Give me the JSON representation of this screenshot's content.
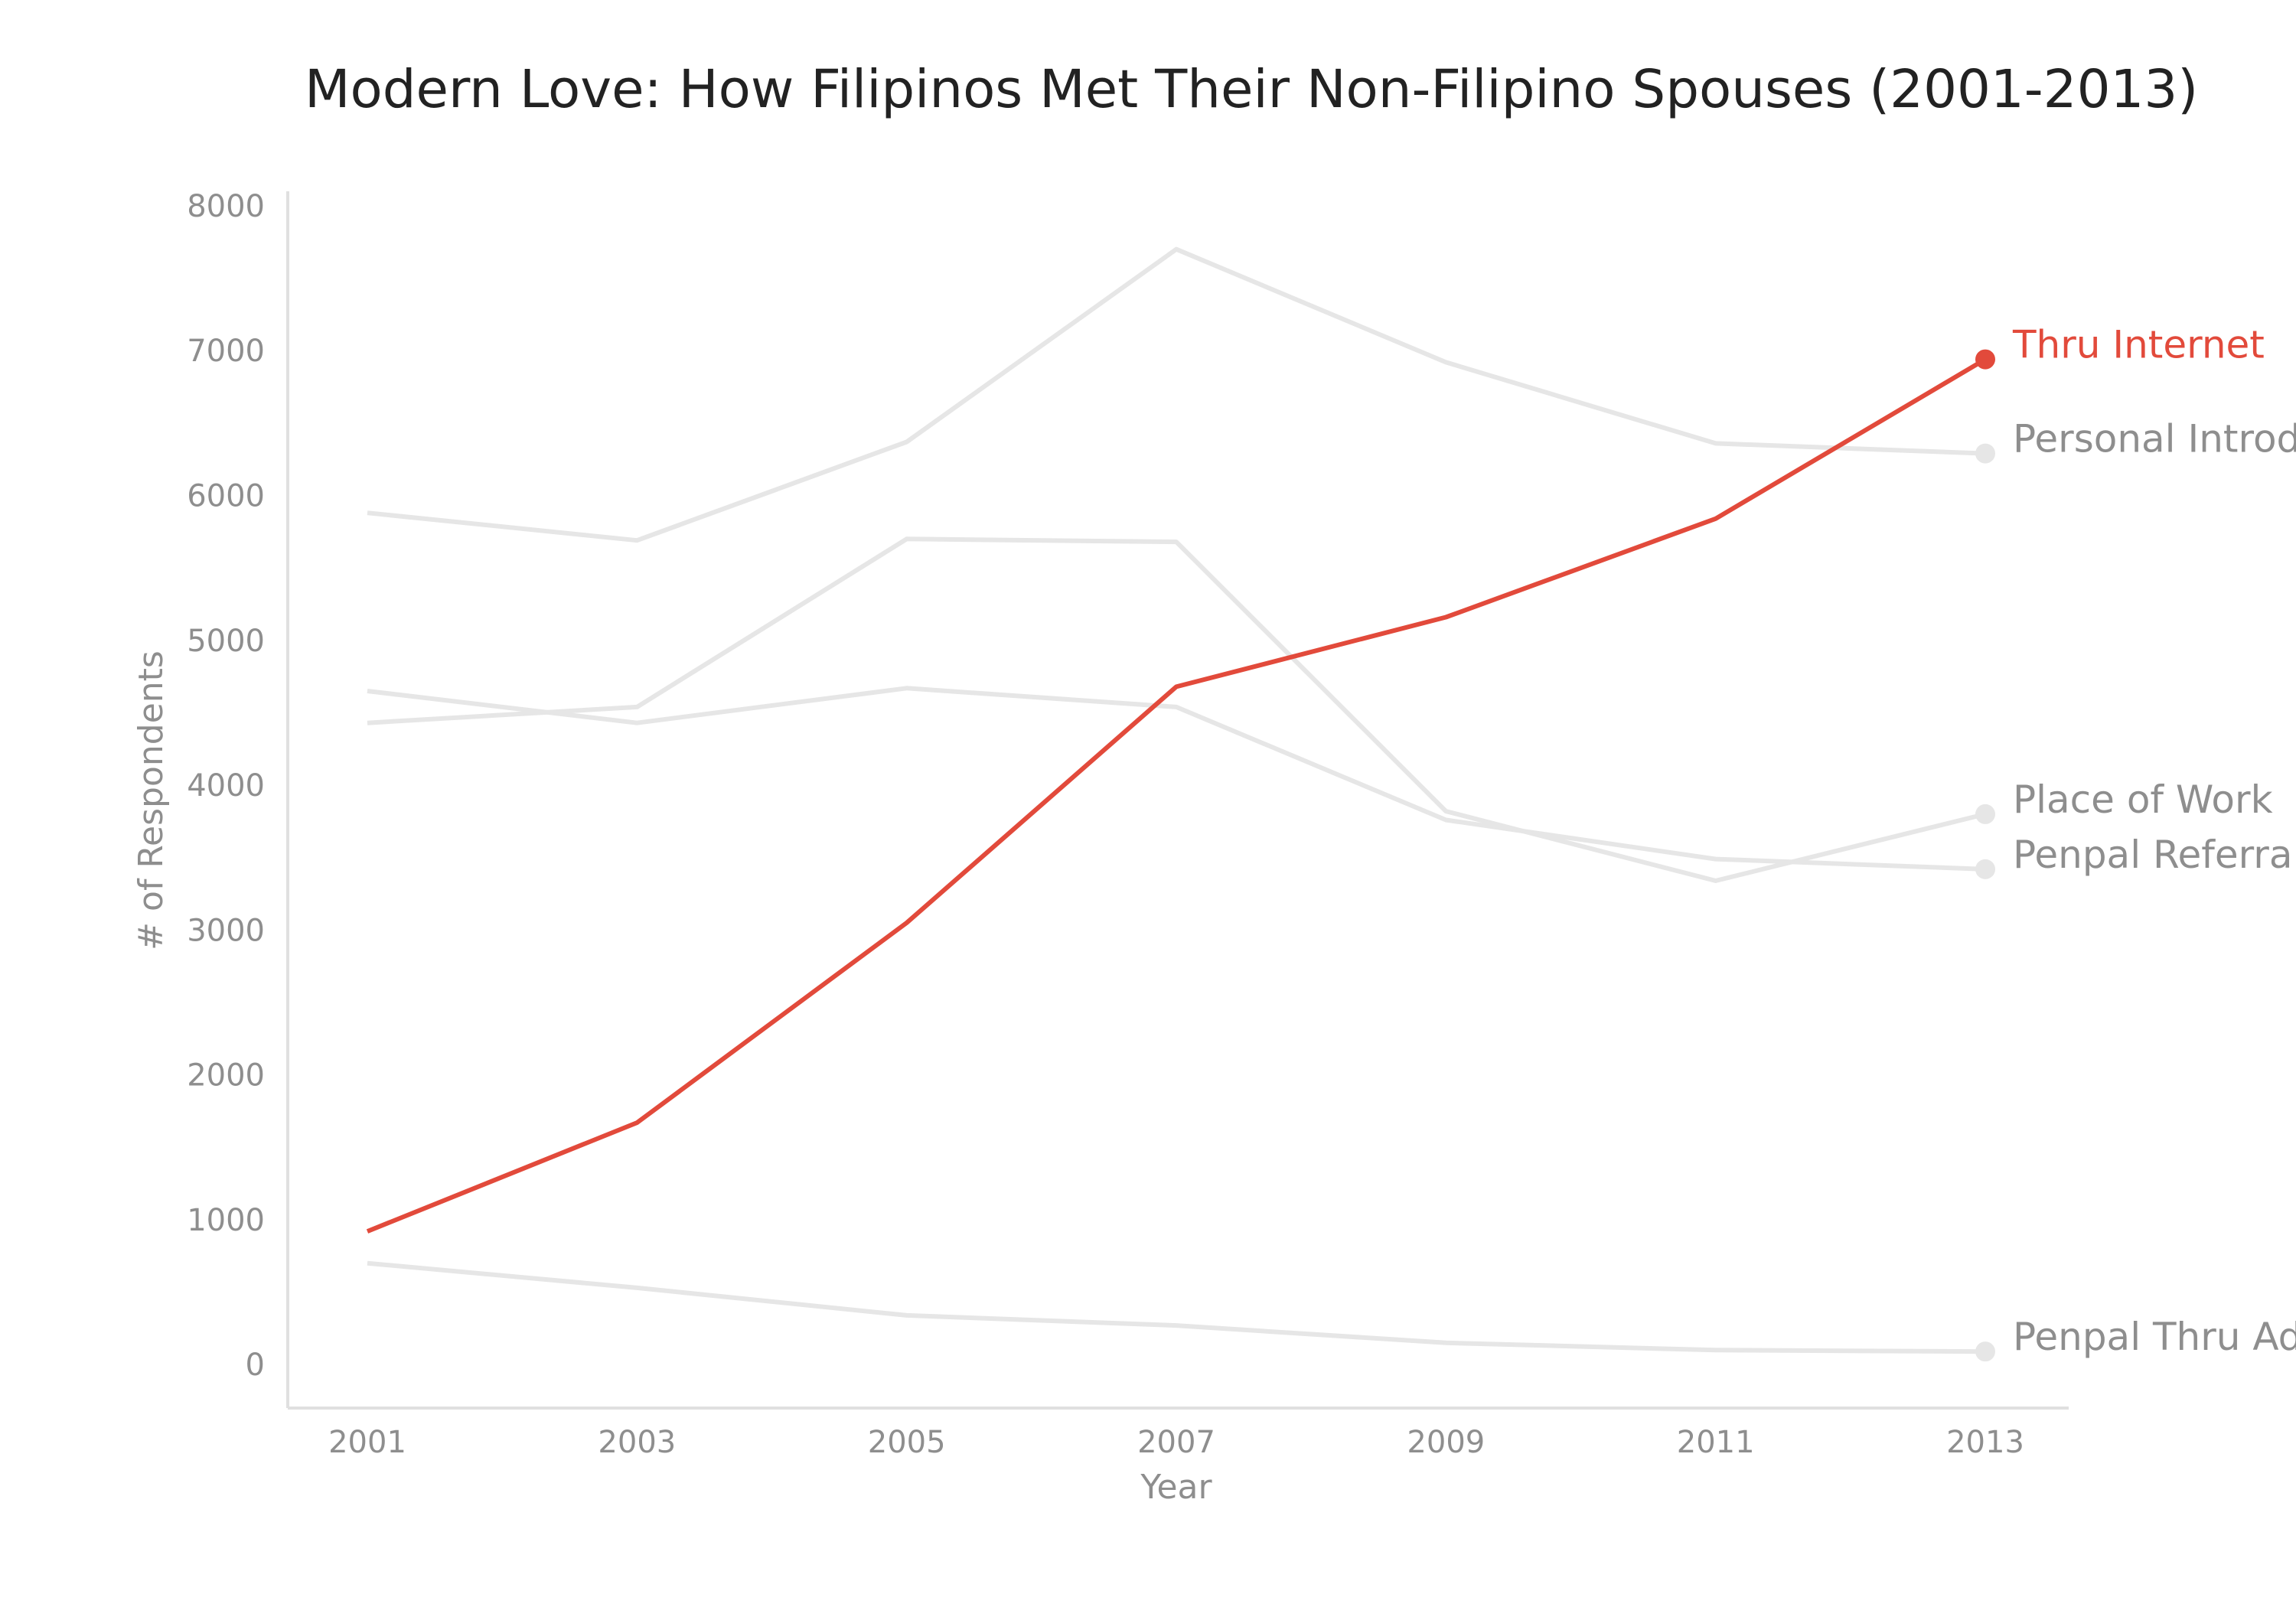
{
  "chart_data": {
    "type": "line",
    "title": "Modern Love: How Filipinos Met Their Non-Filipino Spouses (2001-2013)",
    "xlabel": "Year",
    "ylabel": "# of Respondents",
    "x": [
      "2001",
      "2003",
      "2005",
      "2007",
      "2009",
      "2011",
      "2013"
    ],
    "yticks": [
      "0",
      "1000",
      "2000",
      "3000",
      "4000",
      "5000",
      "6000",
      "7000",
      "8000"
    ],
    "ylim": [
      -300,
      8100
    ],
    "grid": false,
    "highlight_color": "#e24a3b",
    "muted_color": "#e6e6e6",
    "series": [
      {
        "name": "Thru Internet",
        "highlight": true,
        "values": [
          920,
          1670,
          3050,
          4680,
          5160,
          5840,
          6940
        ]
      },
      {
        "name": "Personal Introduction",
        "highlight": false,
        "values": [
          5880,
          5690,
          6370,
          7700,
          6920,
          6360,
          6290
        ]
      },
      {
        "name": "Place of Work",
        "highlight": false,
        "values": [
          4430,
          4540,
          5700,
          5680,
          3820,
          3340,
          3800
        ]
      },
      {
        "name": "Penpal Referral",
        "highlight": false,
        "values": [
          4650,
          4430,
          4670,
          4540,
          3760,
          3490,
          3420
        ]
      },
      {
        "name": "Penpal Thru Ads",
        "highlight": false,
        "values": [
          700,
          530,
          340,
          270,
          150,
          100,
          90
        ]
      }
    ]
  }
}
